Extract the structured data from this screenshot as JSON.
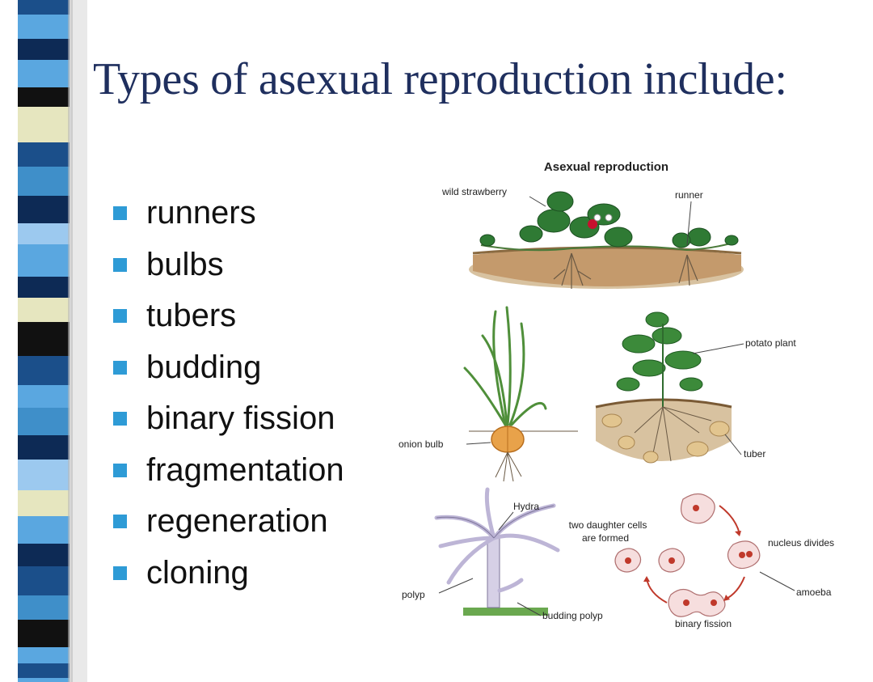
{
  "slide": {
    "title": "Types of asexual reproduction include:",
    "bullets": [
      "runners",
      "bulbs",
      "tubers",
      "budding",
      "binary fission",
      "fragmentation",
      "regeneration",
      "cloning"
    ]
  },
  "figure": {
    "title": "Asexual reproduction",
    "labels": {
      "wild_strawberry": "wild strawberry",
      "runner": "runner",
      "potato_plant": "potato plant",
      "onion_bulb": "onion bulb",
      "tuber": "tuber",
      "hydra": "Hydra",
      "daughter_cells_line1": "two daughter cells",
      "daughter_cells_line2": "are formed",
      "nucleus_divides": "nucleus divides",
      "polyp": "polyp",
      "amoeba": "amoeba",
      "budding_polyp": "budding polyp",
      "binary_fission": "binary fission"
    }
  },
  "colors": {
    "title": "#1f2f5e",
    "bullet_square": "#2e9bd6",
    "stripe_palette": [
      "#1b4f8a",
      "#5aa7e0",
      "#0d2a55",
      "#111111",
      "#e6e6bf",
      "#3f8fc9",
      "#9cc9ef"
    ]
  }
}
